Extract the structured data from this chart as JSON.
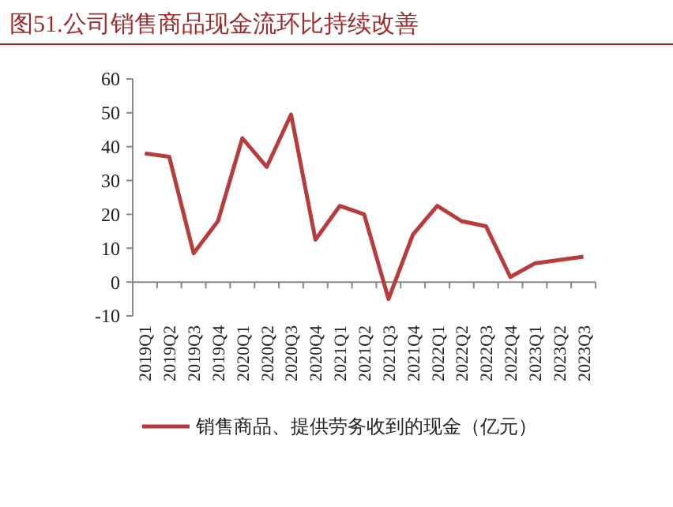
{
  "chart_data": {
    "type": "line",
    "title": "图51.公司销售商品现金流环比持续改善",
    "categories": [
      "2019Q1",
      "2019Q2",
      "2019Q3",
      "2019Q4",
      "2020Q1",
      "2020Q2",
      "2020Q3",
      "2020Q4",
      "2021Q1",
      "2021Q2",
      "2021Q3",
      "2021Q4",
      "2022Q1",
      "2022Q2",
      "2022Q3",
      "2022Q4",
      "2023Q1",
      "2023Q2",
      "2023Q3"
    ],
    "series": [
      {
        "name": "销售商品、提供劳务收到的现金（亿元）",
        "color": "#b83c3c",
        "values": [
          38,
          37,
          8.5,
          18,
          42.5,
          34,
          49.5,
          12.5,
          22.5,
          20,
          -5,
          14,
          22.5,
          18,
          16.5,
          1.5,
          5.5,
          6.5,
          7.5
        ]
      }
    ],
    "ylim": [
      -10,
      60
    ],
    "yticks": [
      -10,
      0,
      10,
      20,
      30,
      40,
      50,
      60
    ],
    "grid": false,
    "legend": "bottom",
    "marker": "none",
    "line_style": "solid"
  }
}
